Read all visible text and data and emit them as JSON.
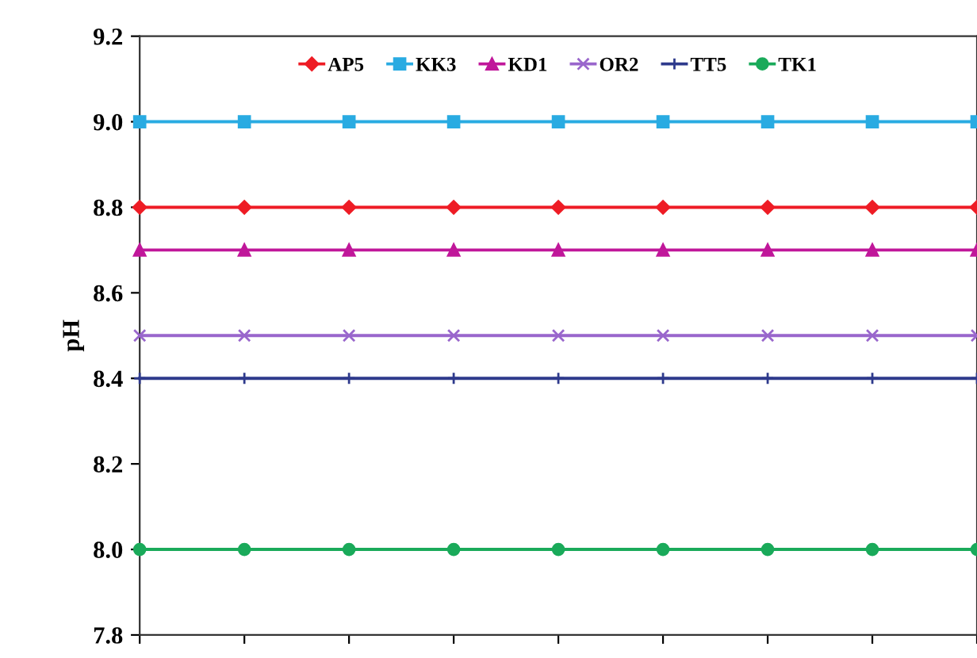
{
  "chart_data": {
    "type": "line",
    "ylabel": "pH",
    "categories": [
      null,
      null,
      null,
      null,
      null,
      null,
      null,
      null,
      null
    ],
    "series": [
      {
        "name": "AP5",
        "color": "#ee1c25",
        "marker": "diamond",
        "values": [
          8.8,
          8.8,
          8.8,
          8.8,
          8.8,
          8.8,
          8.8,
          8.8,
          8.8
        ]
      },
      {
        "name": "KK3",
        "color": "#29abe2",
        "marker": "square",
        "values": [
          9.0,
          9.0,
          9.0,
          9.0,
          9.0,
          9.0,
          9.0,
          9.0,
          9.0
        ]
      },
      {
        "name": "KD1",
        "color": "#c0179a",
        "marker": "triangle",
        "values": [
          8.7,
          8.7,
          8.7,
          8.7,
          8.7,
          8.7,
          8.7,
          8.7,
          8.7
        ]
      },
      {
        "name": "OR2",
        "color": "#9966cc",
        "marker": "cross",
        "values": [
          8.5,
          8.5,
          8.5,
          8.5,
          8.5,
          8.5,
          8.5,
          8.5,
          8.5
        ]
      },
      {
        "name": "TT5",
        "color": "#2e3a8c",
        "marker": "plus",
        "values": [
          8.4,
          8.4,
          8.4,
          8.4,
          8.4,
          8.4,
          8.4,
          8.4,
          8.4
        ]
      },
      {
        "name": "TK1",
        "color": "#1aaa5a",
        "marker": "circle",
        "values": [
          8.0,
          8.0,
          8.0,
          8.0,
          8.0,
          8.0,
          8.0,
          8.0,
          8.0
        ]
      }
    ],
    "ylim": [
      7.8,
      9.2
    ],
    "yticks": [
      {
        "value": 7.8,
        "label": "7.8"
      },
      {
        "value": 8.0,
        "label": "8.0"
      },
      {
        "value": 8.2,
        "label": "8.2"
      },
      {
        "value": 8.4,
        "label": "8.4"
      },
      {
        "value": 8.6,
        "label": "8.6"
      },
      {
        "value": 8.8,
        "label": "8.8"
      },
      {
        "value": 9.0,
        "label": "9.0"
      },
      {
        "value": 9.2,
        "label": "9.2"
      }
    ],
    "grid": false,
    "legend": "top",
    "line_style": "solid",
    "tick_labels": "y"
  }
}
